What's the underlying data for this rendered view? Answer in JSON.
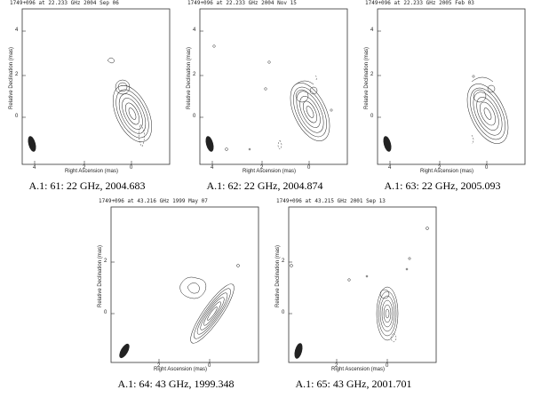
{
  "panels": [
    {
      "title": "1749+096 at 22.233 GHz 2004 Sep 06",
      "ylabel": "Relative Declination  (mas)",
      "xlabel": "Right Ascension  (mas)",
      "xticks": [
        "4",
        "2",
        "0"
      ],
      "yticks": [
        "4",
        "2",
        "0"
      ],
      "caption": "A.1: 61: 22 GHz, 2004.683"
    },
    {
      "title": "1749+096 at 22.233 GHz 2004 Nov 15",
      "ylabel": "Relative Declination  (mas)",
      "xlabel": "Right Ascension  (mas)",
      "xticks": [
        "4",
        "2",
        "0"
      ],
      "yticks": [
        "4",
        "2",
        "0"
      ],
      "caption": "A.1: 62: 22 GHz, 2004.874"
    },
    {
      "title": "1749+096 at 22.233 GHz 2005 Feb 03",
      "ylabel": "Relative Declination  (mas)",
      "xlabel": "Right Ascension  (mas)",
      "xticks": [
        "4",
        "2",
        "0"
      ],
      "yticks": [
        "4",
        "2",
        "0"
      ],
      "caption": "A.1: 63: 22 GHz, 2005.093"
    },
    {
      "title": "1749+096 at 43.216 GHz 1999 May 07",
      "ylabel": "Relative Declination  (mas)",
      "xlabel": "Right Ascension  (mas)",
      "xticks": [
        "2",
        "0"
      ],
      "yticks": [
        "2",
        "0"
      ],
      "caption": "A.1: 64: 43 GHz, 1999.348"
    },
    {
      "title": "1749+096 at 43.215 GHz 2001 Sep 13",
      "ylabel": "Relative Declination  (mas)",
      "xlabel": "Right Ascension  (mas)",
      "xticks": [
        "2",
        "0"
      ],
      "yticks": [
        "2",
        "0"
      ],
      "caption": "A.1: 65: 43 GHz, 2001.701"
    }
  ]
}
